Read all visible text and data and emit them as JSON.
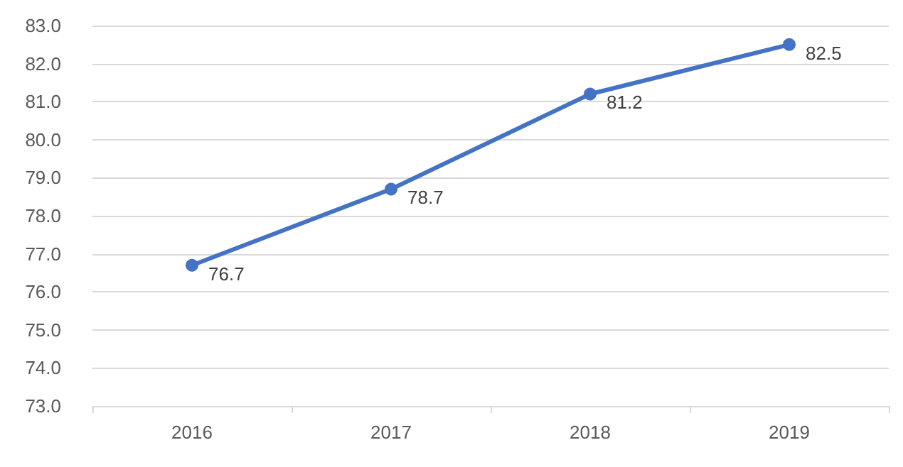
{
  "chart_data": {
    "type": "line",
    "categories": [
      "2016",
      "2017",
      "2018",
      "2019"
    ],
    "series": [
      {
        "color": "#4472c4",
        "values": [
          76.7,
          78.7,
          81.2,
          82.5
        ]
      }
    ],
    "ylim": [
      73,
      83
    ],
    "yticks": [
      {
        "value": 73,
        "label": "73.0"
      },
      {
        "value": 74,
        "label": "74.0"
      },
      {
        "value": 75,
        "label": "75.0"
      },
      {
        "value": 76,
        "label": "76.0"
      },
      {
        "value": 77,
        "label": "77.0"
      },
      {
        "value": 78,
        "label": "78.0"
      },
      {
        "value": 79,
        "label": "79.0"
      },
      {
        "value": 80,
        "label": "80.0"
      },
      {
        "value": 81,
        "label": "81.0"
      },
      {
        "value": 82,
        "label": "82.0"
      },
      {
        "value": 83,
        "label": "83.0"
      }
    ],
    "grid": "y",
    "marker": "circle",
    "line_style": "solid",
    "data_labels": true
  }
}
